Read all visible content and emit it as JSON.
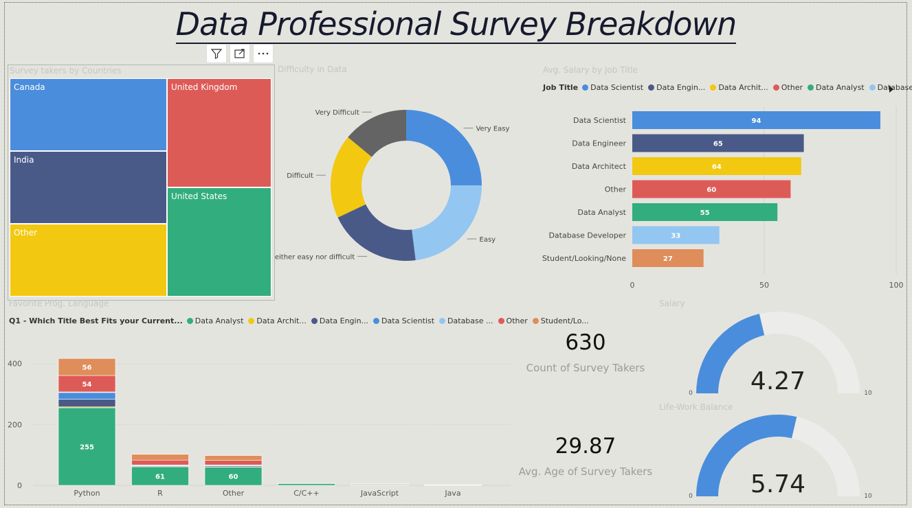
{
  "page": {
    "title": "Data Professional Survey Breakdown"
  },
  "visual_header": {
    "icons": [
      "filter-icon",
      "focus-mode-icon",
      "more-options-icon"
    ]
  },
  "treemap": {
    "title": "Survey takers by Countries",
    "items": [
      {
        "label": "Canada",
        "color": "#4a8ddc"
      },
      {
        "label": "United Kingdom",
        "color": "#dd5b57"
      },
      {
        "label": "India",
        "color": "#4a5a88"
      },
      {
        "label": "United States",
        "color": "#32ad7e"
      },
      {
        "label": "Other",
        "color": "#f2c811"
      }
    ]
  },
  "donut": {
    "title": "Difficulty in Data",
    "labels": [
      "Very Easy",
      "Easy",
      "Neither easy nor difficult",
      "Difficult",
      "Very Difficult"
    ]
  },
  "salary_bar": {
    "title": "Avg.  Salary by Job Title",
    "legend_title": "Job Title",
    "legend": [
      "Data Scientist",
      "Data Engin...",
      "Data Archit...",
      "Other",
      "Data Analyst",
      "Database ..."
    ],
    "more_icon": "chevron-right-icon"
  },
  "lang_chart": {
    "title": "Favorite Prog. Language",
    "legend_title": "Q1 - Which Title Best Fits your Current...",
    "legend": [
      "Data Analyst",
      "Data Archit...",
      "Data Engin...",
      "Data Scientist",
      "Database ...",
      "Other",
      "Student/Lo..."
    ]
  },
  "kpis": [
    {
      "value": "630",
      "label": "Count of Survey Takers"
    },
    {
      "value": "29.87",
      "label": "Avg. Age of Survey Takers"
    }
  ],
  "gauges": [
    {
      "title": "Salary",
      "value": 4.27,
      "display": "4.27",
      "min": "0",
      "max": "10"
    },
    {
      "title": "Life-Work Balance",
      "value": 5.74,
      "display": "5.74",
      "min": "0",
      "max": "10"
    }
  ],
  "chart_data": [
    {
      "type": "pie",
      "title": "Difficulty in Data",
      "categories": [
        "Very Easy",
        "Easy",
        "Neither easy nor difficult",
        "Difficult",
        "Very Difficult"
      ],
      "values": [
        25,
        23,
        20,
        18,
        14
      ],
      "colors": [
        "#4a8ddc",
        "#93c6f1",
        "#4a5a88",
        "#f2c811",
        "#646464"
      ]
    },
    {
      "type": "bar",
      "orientation": "horizontal",
      "title": "Avg.  Salary by Job Title",
      "categories": [
        "Data Scientist",
        "Data Engineer",
        "Data Architect",
        "Other",
        "Data Analyst",
        "Database Developer",
        "Student/Looking/None"
      ],
      "values": [
        94,
        65,
        64,
        60,
        55,
        33,
        27
      ],
      "colors": [
        "#4a8ddc",
        "#4a5a88",
        "#f2c811",
        "#dd5b57",
        "#32ad7e",
        "#93c6f1",
        "#df8d5a"
      ],
      "xlim": [
        0,
        100
      ],
      "xticks": [
        0,
        50,
        100
      ]
    },
    {
      "type": "bar",
      "stacked": true,
      "title": "Favorite Prog. Language",
      "categories": [
        "Python",
        "R",
        "Other",
        "C/C++",
        "JavaScript",
        "Java"
      ],
      "ylim": [
        0,
        440
      ],
      "yticks": [
        0,
        200,
        400
      ],
      "series": [
        {
          "name": "Data Analyst",
          "color": "#32ad7e",
          "values": [
            255,
            61,
            60,
            6,
            2,
            1
          ]
        },
        {
          "name": "Data Archit...",
          "color": "#f2c811",
          "values": [
            3,
            1,
            1,
            0,
            0,
            0
          ]
        },
        {
          "name": "Data Engin...",
          "color": "#4a5a88",
          "values": [
            25,
            2,
            3,
            0,
            0,
            0
          ]
        },
        {
          "name": "Data Scientist",
          "color": "#4a8ddc",
          "values": [
            22,
            2,
            2,
            0,
            0,
            0
          ]
        },
        {
          "name": "Database ...",
          "color": "#93c6f1",
          "values": [
            2,
            1,
            1,
            0,
            0,
            0
          ]
        },
        {
          "name": "Other",
          "color": "#dd5b57",
          "values": [
            54,
            16,
            15,
            1,
            2,
            1
          ]
        },
        {
          "name": "Student/Lo...",
          "color": "#df8d5a",
          "values": [
            56,
            19,
            16,
            0,
            1,
            0
          ]
        }
      ],
      "data_labels": {
        "Data Analyst": [
          255,
          61,
          60
        ],
        "Other": [
          54
        ],
        "Student/Lo...": [
          56
        ]
      }
    }
  ]
}
